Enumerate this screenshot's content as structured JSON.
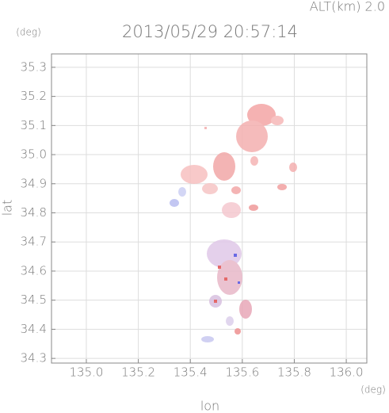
{
  "chart_data": {
    "type": "map",
    "title": "2013/05/29 20:57:14",
    "subtitle": "ALT(km) 2.0",
    "x_label": "lon",
    "y_label": "lat",
    "x_unit": "(deg)",
    "y_unit": "(deg)",
    "xlim": [
      134.866,
      136.079
    ],
    "ylim": [
      34.284,
      35.346
    ],
    "xticks": [
      {
        "value": 135,
        "label": "135.0"
      },
      135.2,
      135.4,
      135.6,
      135.8,
      {
        "value": 136,
        "label": "136.0"
      }
    ],
    "yticks": [
      35.3,
      35.2,
      35.1,
      {
        "value": 35,
        "label": "35.0"
      },
      34.9,
      34.8,
      34.7,
      34.6,
      34.5,
      34.4,
      34.3
    ],
    "grid": true
  }
}
